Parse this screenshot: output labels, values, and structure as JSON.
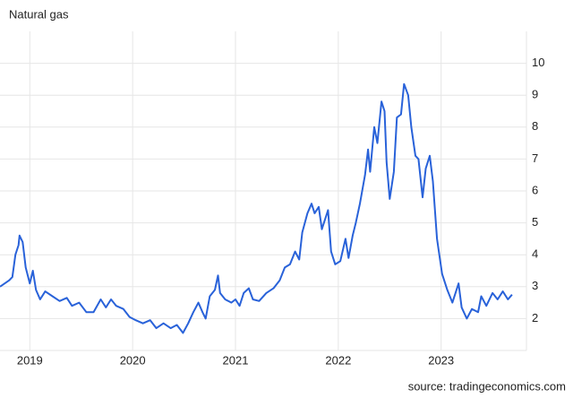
{
  "chart_data": {
    "type": "line",
    "title": "Natural gas",
    "source": "source: tradingeconomics.com",
    "x": [
      2018.71,
      2018.8,
      2018.83,
      2018.86,
      2018.89,
      2018.9,
      2018.93,
      2018.96,
      2019.0,
      2019.03,
      2019.06,
      2019.1,
      2019.15,
      2019.22,
      2019.29,
      2019.36,
      2019.41,
      2019.48,
      2019.55,
      2019.62,
      2019.69,
      2019.74,
      2019.79,
      2019.84,
      2019.91,
      2019.97,
      2020.03,
      2020.1,
      2020.17,
      2020.23,
      2020.3,
      2020.37,
      2020.43,
      2020.49,
      2020.54,
      2020.59,
      2020.64,
      2020.68,
      2020.71,
      2020.75,
      2020.8,
      2020.83,
      2020.85,
      2020.9,
      2020.96,
      2021.0,
      2021.04,
      2021.08,
      2021.13,
      2021.17,
      2021.23,
      2021.3,
      2021.37,
      2021.43,
      2021.48,
      2021.53,
      2021.58,
      2021.62,
      2021.65,
      2021.7,
      2021.74,
      2021.77,
      2021.81,
      2021.84,
      2021.9,
      2021.93,
      2021.97,
      2022.02,
      2022.07,
      2022.1,
      2022.14,
      2022.17,
      2022.21,
      2022.26,
      2022.29,
      2022.31,
      2022.35,
      2022.38,
      2022.42,
      2022.45,
      2022.47,
      2022.5,
      2022.54,
      2022.57,
      2022.61,
      2022.64,
      2022.68,
      2022.71,
      2022.75,
      2022.78,
      2022.82,
      2022.85,
      2022.89,
      2022.92,
      2022.96,
      2023.01,
      2023.06,
      2023.11,
      2023.17,
      2023.2,
      2023.25,
      2023.3,
      2023.36,
      2023.39,
      2023.44,
      2023.5,
      2023.55,
      2023.6,
      2023.65,
      2023.69
    ],
    "series": [
      {
        "name": "Natural gas",
        "color": "#2962d9",
        "values": [
          3.0,
          3.2,
          3.3,
          4.0,
          4.3,
          4.6,
          4.4,
          3.6,
          3.1,
          3.5,
          2.9,
          2.6,
          2.85,
          2.7,
          2.55,
          2.65,
          2.4,
          2.5,
          2.2,
          2.2,
          2.6,
          2.35,
          2.6,
          2.4,
          2.3,
          2.05,
          1.95,
          1.85,
          1.95,
          1.7,
          1.85,
          1.7,
          1.8,
          1.55,
          1.85,
          2.2,
          2.5,
          2.2,
          2.0,
          2.7,
          2.9,
          3.35,
          2.8,
          2.6,
          2.5,
          2.6,
          2.4,
          2.8,
          2.95,
          2.6,
          2.55,
          2.8,
          2.95,
          3.2,
          3.6,
          3.7,
          4.1,
          3.85,
          4.7,
          5.3,
          5.6,
          5.3,
          5.5,
          4.8,
          5.4,
          4.1,
          3.7,
          3.8,
          4.5,
          3.9,
          4.6,
          5.0,
          5.6,
          6.5,
          7.3,
          6.6,
          8.0,
          7.5,
          8.8,
          8.5,
          6.9,
          5.75,
          6.6,
          8.3,
          8.4,
          9.35,
          9.0,
          8.0,
          7.1,
          7.0,
          5.8,
          6.7,
          7.1,
          6.3,
          4.5,
          3.4,
          2.9,
          2.5,
          3.1,
          2.35,
          2.0,
          2.3,
          2.2,
          2.7,
          2.4,
          2.8,
          2.6,
          2.85,
          2.6,
          2.75
        ]
      }
    ],
    "xlim": [
      2018.71,
      2023.83
    ],
    "xticks": [
      2019,
      2020,
      2021,
      2022,
      2023
    ],
    "ylim": [
      1,
      11
    ],
    "yticks": [
      2,
      3,
      4,
      5,
      6,
      7,
      8,
      9,
      10
    ],
    "grid": true
  }
}
